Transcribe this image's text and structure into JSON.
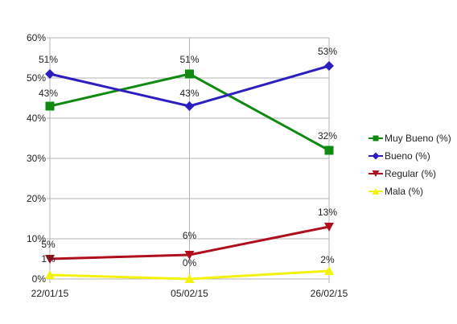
{
  "chart_data": {
    "type": "line",
    "categories": [
      "22/01/15",
      "05/02/15",
      "26/02/15"
    ],
    "ylim": [
      0,
      60
    ],
    "y_tick_labels": [
      "0%",
      "10%",
      "20%",
      "30%",
      "40%",
      "50%",
      "60%"
    ],
    "grid": true,
    "legend_position": "right",
    "series": [
      {
        "name": "Muy Bueno (%)",
        "values": [
          43,
          51,
          32
        ],
        "labels": [
          "43%",
          "51%",
          "32%"
        ],
        "color": "#108a10",
        "marker": "square"
      },
      {
        "name": "Bueno (%)",
        "values": [
          51,
          43,
          53
        ],
        "labels": [
          "51%",
          "43%",
          "53%"
        ],
        "color": "#2d1ec0",
        "marker": "diamond"
      },
      {
        "name": "Regular (%)",
        "values": [
          5,
          6,
          13
        ],
        "labels": [
          "5%",
          "6%",
          "13%"
        ],
        "color": "#b00f1d",
        "marker": "triangle-down"
      },
      {
        "name": "Mala (%)",
        "values": [
          1,
          0,
          2
        ],
        "labels": [
          "1%",
          "0%",
          "2%"
        ],
        "color": "#f2f20a",
        "marker": "triangle-up"
      }
    ]
  }
}
